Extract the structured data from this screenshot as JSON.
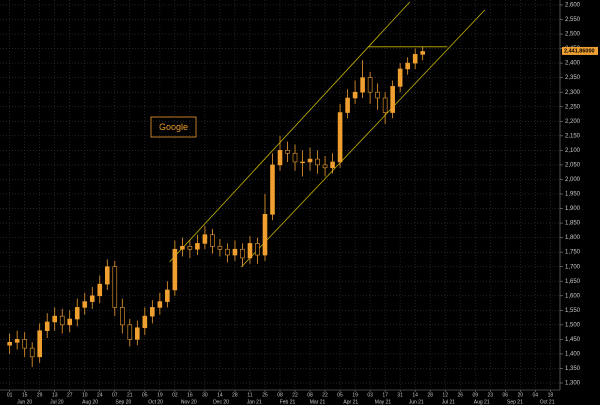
{
  "chart_data": {
    "type": "candlestick",
    "annotation": "Google",
    "color": "#f0a030",
    "trend_color": "#c8b400",
    "grid": true,
    "xlim": [
      "2020-05-23",
      "2021-10-27"
    ],
    "ylim": [
      1276,
      2617
    ],
    "yticks": [
      {
        "value": 1300,
        "label": "1,300"
      },
      {
        "value": 1350,
        "label": "1,350"
      },
      {
        "value": 1400,
        "label": "1,400"
      },
      {
        "value": 1450,
        "label": "1,450"
      },
      {
        "value": 1500,
        "label": "1,500"
      },
      {
        "value": 1550,
        "label": "1,550"
      },
      {
        "value": 1600,
        "label": "1,600"
      },
      {
        "value": 1650,
        "label": "1,650"
      },
      {
        "value": 1700,
        "label": "1,700"
      },
      {
        "value": 1750,
        "label": "1,750"
      },
      {
        "value": 1800,
        "label": "1,800"
      },
      {
        "value": 1850,
        "label": "1,850"
      },
      {
        "value": 1900,
        "label": "1,900"
      },
      {
        "value": 1950,
        "label": "1,950"
      },
      {
        "value": 2000,
        "label": "2,000"
      },
      {
        "value": 2050,
        "label": "2,050"
      },
      {
        "value": 2100,
        "label": "2,100"
      },
      {
        "value": 2150,
        "label": "2,150"
      },
      {
        "value": 2200,
        "label": "2,200"
      },
      {
        "value": 2250,
        "label": "2,250"
      },
      {
        "value": 2300,
        "label": "2,300"
      },
      {
        "value": 2350,
        "label": "2,350"
      },
      {
        "value": 2400,
        "label": "2,400"
      },
      {
        "value": 2450,
        "label": "2,450"
      },
      {
        "value": 2500,
        "label": "2,500"
      },
      {
        "value": 2550,
        "label": "2,550"
      },
      {
        "value": 2600,
        "label": "2,600"
      }
    ],
    "xticks": [
      {
        "value": "2020-06-01",
        "label": "01"
      },
      {
        "value": "2020-06-15",
        "label": "15"
      },
      {
        "value": "2020-06-29",
        "label": "29"
      },
      {
        "value": "2020-07-13",
        "label": "13"
      },
      {
        "value": "2020-07-27",
        "label": "27"
      },
      {
        "value": "2020-08-10",
        "label": "10"
      },
      {
        "value": "2020-08-24",
        "label": "24"
      },
      {
        "value": "2020-09-07",
        "label": "07"
      },
      {
        "value": "2020-09-21",
        "label": "21"
      },
      {
        "value": "2020-10-05",
        "label": "05"
      },
      {
        "value": "2020-10-19",
        "label": "19"
      },
      {
        "value": "2020-11-02",
        "label": "02"
      },
      {
        "value": "2020-11-16",
        "label": "16"
      },
      {
        "value": "2020-11-30",
        "label": "30"
      },
      {
        "value": "2020-12-14",
        "label": "14"
      },
      {
        "value": "2020-12-28",
        "label": "28"
      },
      {
        "value": "2021-01-11",
        "label": "11"
      },
      {
        "value": "2021-01-25",
        "label": "25"
      },
      {
        "value": "2021-02-08",
        "label": "08"
      },
      {
        "value": "2021-02-22",
        "label": "22"
      },
      {
        "value": "2021-03-08",
        "label": "08"
      },
      {
        "value": "2021-03-22",
        "label": "22"
      },
      {
        "value": "2021-04-05",
        "label": "05"
      },
      {
        "value": "2021-04-19",
        "label": "19"
      },
      {
        "value": "2021-05-03",
        "label": "03"
      },
      {
        "value": "2021-05-17",
        "label": "17"
      },
      {
        "value": "2021-05-31",
        "label": "31"
      },
      {
        "value": "2021-06-14",
        "label": "14"
      },
      {
        "value": "2021-06-28",
        "label": "28"
      },
      {
        "value": "2021-07-12",
        "label": "12"
      },
      {
        "value": "2021-07-26",
        "label": "26"
      },
      {
        "value": "2021-08-09",
        "label": "09"
      },
      {
        "value": "2021-08-23",
        "label": "23"
      },
      {
        "value": "2021-09-06",
        "label": "06"
      },
      {
        "value": "2021-09-20",
        "label": "20"
      },
      {
        "value": "2021-10-04",
        "label": "04"
      },
      {
        "value": "2021-10-18",
        "label": "18"
      }
    ],
    "month_ticks": [
      {
        "value": "2020-06-15",
        "label": "Jun 20"
      },
      {
        "value": "2020-07-15",
        "label": "Jul 20"
      },
      {
        "value": "2020-08-15",
        "label": "Aug 20"
      },
      {
        "value": "2020-09-15",
        "label": "Sep 20"
      },
      {
        "value": "2020-10-15",
        "label": "Oct 20"
      },
      {
        "value": "2020-11-15",
        "label": "Nov 20"
      },
      {
        "value": "2020-12-15",
        "label": "Dec 20"
      },
      {
        "value": "2021-01-15",
        "label": "Jan 21"
      },
      {
        "value": "2021-02-15",
        "label": "Feb 21"
      },
      {
        "value": "2021-03-15",
        "label": "Mar 21"
      },
      {
        "value": "2021-04-15",
        "label": "Apr 21"
      },
      {
        "value": "2021-05-15",
        "label": "May 21"
      },
      {
        "value": "2021-06-15",
        "label": "Jun 21"
      },
      {
        "value": "2021-07-15",
        "label": "Jul 21"
      },
      {
        "value": "2021-08-15",
        "label": "Aug 21"
      },
      {
        "value": "2021-09-15",
        "label": "Sep 21"
      },
      {
        "value": "2021-10-15",
        "label": "Oct 21"
      }
    ],
    "x": [
      "2020-06-01",
      "2020-06-08",
      "2020-06-15",
      "2020-06-22",
      "2020-06-29",
      "2020-07-06",
      "2020-07-13",
      "2020-07-20",
      "2020-07-27",
      "2020-08-03",
      "2020-08-10",
      "2020-08-17",
      "2020-08-24",
      "2020-08-31",
      "2020-09-07",
      "2020-09-14",
      "2020-09-21",
      "2020-09-28",
      "2020-10-05",
      "2020-10-12",
      "2020-10-19",
      "2020-10-26",
      "2020-11-02",
      "2020-11-09",
      "2020-11-16",
      "2020-11-23",
      "2020-11-30",
      "2020-12-07",
      "2020-12-14",
      "2020-12-21",
      "2020-12-28",
      "2021-01-04",
      "2021-01-11",
      "2021-01-18",
      "2021-01-25",
      "2021-02-01",
      "2021-02-08",
      "2021-02-15",
      "2021-02-22",
      "2021-03-01",
      "2021-03-08",
      "2021-03-15",
      "2021-03-22",
      "2021-03-29",
      "2021-04-05",
      "2021-04-12",
      "2021-04-19",
      "2021-04-26",
      "2021-05-03",
      "2021-05-10",
      "2021-05-17",
      "2021-05-24",
      "2021-05-31",
      "2021-06-07",
      "2021-06-14",
      "2021-06-21"
    ],
    "open": [
      1430,
      1440,
      1450,
      1420,
      1390,
      1480,
      1510,
      1530,
      1500,
      1520,
      1560,
      1580,
      1600,
      1640,
      1700,
      1560,
      1500,
      1450,
      1490,
      1530,
      1560,
      1580,
      1620,
      1760,
      1770,
      1760,
      1780,
      1810,
      1770,
      1760,
      1740,
      1760,
      1730,
      1780,
      1740,
      1880,
      2050,
      2100,
      2090,
      2060,
      2060,
      2070,
      2050,
      2040,
      2060,
      2230,
      2280,
      2300,
      2350,
      2300,
      2280,
      2230,
      2320,
      2380,
      2400,
      2430
    ],
    "high": [
      1470,
      1480,
      1475,
      1440,
      1505,
      1540,
      1560,
      1555,
      1550,
      1590,
      1610,
      1630,
      1670,
      1725,
      1720,
      1590,
      1520,
      1515,
      1560,
      1585,
      1610,
      1650,
      1790,
      1800,
      1790,
      1810,
      1840,
      1830,
      1795,
      1780,
      1790,
      1780,
      1805,
      1800,
      1950,
      2090,
      2150,
      2130,
      2120,
      2100,
      2110,
      2100,
      2080,
      2090,
      2260,
      2310,
      2340,
      2410,
      2370,
      2330,
      2300,
      2340,
      2400,
      2420,
      2450,
      2455
    ],
    "low": [
      1400,
      1415,
      1390,
      1355,
      1370,
      1455,
      1480,
      1470,
      1475,
      1495,
      1535,
      1555,
      1575,
      1620,
      1530,
      1470,
      1425,
      1430,
      1465,
      1505,
      1535,
      1560,
      1600,
      1735,
      1730,
      1740,
      1760,
      1745,
      1735,
      1715,
      1720,
      1700,
      1710,
      1710,
      1720,
      1860,
      2030,
      2060,
      2030,
      2010,
      2030,
      2020,
      2010,
      2020,
      2040,
      2210,
      2260,
      2280,
      2260,
      2240,
      2190,
      2210,
      2300,
      2360,
      2380,
      2410
    ],
    "close": [
      1440,
      1450,
      1420,
      1390,
      1480,
      1510,
      1530,
      1500,
      1520,
      1560,
      1580,
      1600,
      1640,
      1700,
      1560,
      1500,
      1450,
      1490,
      1530,
      1560,
      1580,
      1620,
      1760,
      1770,
      1760,
      1780,
      1810,
      1770,
      1760,
      1740,
      1760,
      1730,
      1780,
      1740,
      1880,
      2050,
      2100,
      2090,
      2060,
      2060,
      2070,
      2050,
      2040,
      2060,
      2230,
      2280,
      2300,
      2350,
      2300,
      2280,
      2230,
      2320,
      2380,
      2400,
      2430,
      2440
    ],
    "trendlines": [
      {
        "x": [
          "2020-10-28",
          "2021-06-09"
        ],
        "values": [
          1716,
          2610
        ]
      },
      {
        "x": [
          "2021-01-03",
          "2021-08-18"
        ],
        "values": [
          1699,
          2583
        ]
      },
      {
        "x": [
          "2021-05-01",
          "2021-07-14"
        ],
        "values": [
          2456,
          2456
        ]
      }
    ],
    "last_price": {
      "value": 2441.86,
      "label": "2,441.86000"
    }
  }
}
